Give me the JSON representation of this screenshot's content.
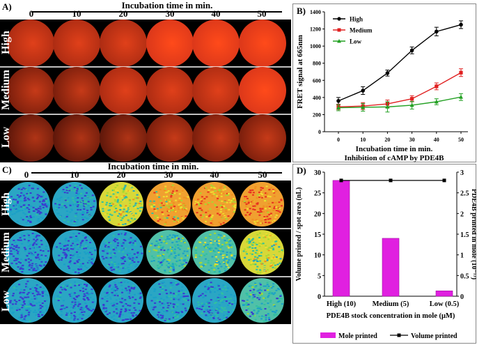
{
  "panelA": {
    "label": "A)",
    "header": "Incubation time in min.",
    "times": [
      "0",
      "10",
      "20",
      "30",
      "40",
      "50"
    ],
    "rows": [
      "High",
      "Medium",
      "Low"
    ]
  },
  "panelB": {
    "label": "B)",
    "legend": [
      "High",
      "Medium",
      "Low"
    ]
  },
  "panelC": {
    "label": "C)",
    "header": "Incubation time in min.",
    "times": [
      "0",
      "10",
      "20",
      "30",
      "40",
      "50"
    ],
    "rows": [
      "High",
      "Medium",
      "Low"
    ]
  },
  "panelD": {
    "label": "D)",
    "legend": [
      "Mole printed",
      "Volume printed"
    ]
  },
  "chart_data": [
    {
      "type": "line",
      "xlabel": "Incubation time in min.",
      "subtitle": "Inhibition of cAMP by PDE4B",
      "ylabel": "FRET signal at 665nm",
      "x": [
        0,
        10,
        20,
        30,
        40,
        50
      ],
      "ylim": [
        0,
        1400
      ],
      "yticks": [
        0,
        200,
        400,
        600,
        800,
        1000,
        1200,
        1400
      ],
      "series": [
        {
          "name": "High",
          "color": "#000000",
          "values": [
            360,
            480,
            685,
            950,
            1170,
            1250
          ],
          "errors": [
            40,
            45,
            35,
            40,
            50,
            45
          ]
        },
        {
          "name": "Medium",
          "color": "#e02020",
          "values": [
            290,
            300,
            325,
            385,
            530,
            690
          ],
          "errors": [
            30,
            40,
            45,
            35,
            40,
            45
          ]
        },
        {
          "name": "Low",
          "color": "#22a022",
          "values": [
            280,
            285,
            290,
            310,
            350,
            405
          ],
          "errors": [
            35,
            45,
            60,
            45,
            35,
            40
          ]
        }
      ]
    },
    {
      "type": "bar",
      "categories": [
        "High (10)",
        "Medium (5)",
        "Low (0.5)"
      ],
      "xlabel": "PDE4B stock concentration in mole (μM)",
      "ylabel": "Volume printed / spot area  (nL)",
      "ylabel_right": "PDE4B printed in mole (10⁻¹³)",
      "ylim_left": [
        0,
        30
      ],
      "yticks_left": [
        0,
        5,
        10,
        15,
        20,
        25,
        30
      ],
      "ylim_right": [
        0,
        3
      ],
      "yticks_right": [
        "0",
        "0.5",
        "1",
        "1.5",
        "2",
        "2.5",
        "3"
      ],
      "series": [
        {
          "name": "Mole printed",
          "kind": "bar",
          "color": "#e020e0",
          "values": [
            28,
            14,
            1.3
          ]
        },
        {
          "name": "Volume printed",
          "kind": "line",
          "color": "#000000",
          "values": [
            28,
            28,
            28
          ]
        }
      ]
    }
  ]
}
